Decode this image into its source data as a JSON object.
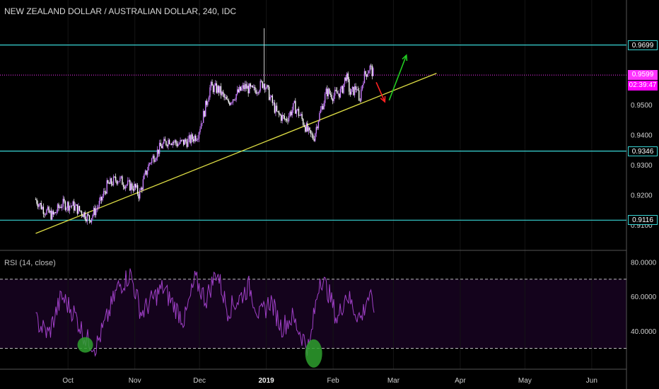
{
  "header": {
    "title": "NEW ZEALAND DOLLAR / AUSTRALIAN DOLLAR, 240, IDC"
  },
  "colors": {
    "background": "#000000",
    "candles": "#c97cff",
    "candles_down": "#ffffff",
    "support_resistance": "#39d5d5",
    "trendline": "#dddd44",
    "current_price_line": "#ff33ff",
    "rsi_line": "#a040c8",
    "rsi_bg": "#14031c",
    "arrow_down": "#ff2222",
    "arrow_up": "#22cc22",
    "marker": "#2ea02e"
  },
  "price_axis": {
    "ticks": [
      "0.9500",
      "0.9400",
      "0.9300",
      "0.9200",
      "0.9100"
    ],
    "range": [
      0.9072,
      0.979
    ]
  },
  "price_badges": [
    {
      "label": "0.9699",
      "color": "#39d5d5"
    },
    {
      "label": "0.9599",
      "color": "#ff33ff"
    },
    {
      "label": "0.9346",
      "color": "#39d5d5"
    },
    {
      "label": "0.9116",
      "color": "#39d5d5"
    }
  ],
  "countdown": "02:39:47",
  "rsi": {
    "label": "RSI (14, close)",
    "ticks": [
      "80.0000",
      "60.0000",
      "40.0000"
    ],
    "range": [
      22,
      83
    ],
    "upper_band": 70,
    "lower_band": 30
  },
  "time_axis": {
    "labels": [
      "Oct",
      "Nov",
      "Dec",
      "2019",
      "Feb",
      "Mar",
      "Apr",
      "May",
      "Jun"
    ]
  },
  "chart_data": {
    "type": "candlestick",
    "title": "NEW ZEALAND DOLLAR / AUSTRALIAN DOLLAR, 240, IDC",
    "horizontal_levels": [
      0.9699,
      0.9346,
      0.9116
    ],
    "current_price": 0.9599,
    "trendline": {
      "from": [
        "Sep-16",
        0.9072
      ],
      "to": [
        "Mar-21",
        0.9605
      ]
    },
    "price_path": [
      [
        "Sep-16",
        0.9185
      ],
      [
        "Sep-20",
        0.915
      ],
      [
        "Sep-24",
        0.913
      ],
      [
        "Sep-28",
        0.917
      ],
      [
        "Oct-03",
        0.9165
      ],
      [
        "Oct-08",
        0.914
      ],
      [
        "Oct-11",
        0.912
      ],
      [
        "Oct-16",
        0.9175
      ],
      [
        "Oct-19",
        0.923
      ],
      [
        "Oct-24",
        0.9255
      ],
      [
        "Oct-28",
        0.9235
      ],
      [
        "Nov-01",
        0.9225
      ],
      [
        "Nov-03",
        0.92
      ],
      [
        "Nov-06",
        0.927
      ],
      [
        "Nov-08",
        0.931
      ],
      [
        "Nov-13",
        0.936
      ],
      [
        "Nov-17",
        0.9385
      ],
      [
        "Nov-21",
        0.937
      ],
      [
        "Nov-26",
        0.938
      ],
      [
        "Nov-30",
        0.94
      ],
      [
        "Dec-03",
        0.947
      ],
      [
        "Dec-06",
        0.956
      ],
      [
        "Dec-10",
        0.955
      ],
      [
        "Dec-14",
        0.9505
      ],
      [
        "Dec-18",
        0.9535
      ],
      [
        "Dec-22",
        0.956
      ],
      [
        "Dec-26",
        0.9545
      ],
      [
        "Dec-31",
        0.9575
      ],
      [
        "Jan-03",
        0.952
      ],
      [
        "Jan-06",
        0.947
      ],
      [
        "Jan-10",
        0.945
      ],
      [
        "Jan-14",
        0.9495
      ],
      [
        "Jan-17",
        0.946
      ],
      [
        "Jan-21",
        0.94
      ],
      [
        "Jan-23",
        0.939
      ],
      [
        "Jan-25",
        0.945
      ],
      [
        "Jan-29",
        0.9545
      ],
      [
        "Feb-01",
        0.953
      ],
      [
        "Feb-05",
        0.9545
      ],
      [
        "Feb-07",
        0.96
      ],
      [
        "Feb-09",
        0.9535
      ],
      [
        "Feb-12",
        0.956
      ],
      [
        "Feb-13",
        0.9505
      ],
      [
        "Feb-15",
        0.959
      ],
      [
        "Feb-18",
        0.9625
      ],
      [
        "Feb-20",
        0.9599
      ]
    ],
    "spike": {
      "x": "Dec-31",
      "high": 0.9755
    },
    "annotations": [
      {
        "type": "arrow",
        "direction": "down",
        "from": [
          "Feb-21",
          0.9575
        ],
        "to": [
          "Feb-25",
          0.951
        ]
      },
      {
        "type": "arrow",
        "direction": "up",
        "from": [
          "Feb-27",
          0.9515
        ],
        "to": [
          "Mar-07",
          0.9665
        ]
      }
    ],
    "rsi_series": {
      "name": "RSI (14, close)",
      "x": [
        "Sep-16",
        "Sep-22",
        "Sep-28",
        "Oct-04",
        "Oct-09",
        "Oct-14",
        "Oct-19",
        "Oct-24",
        "Oct-30",
        "Nov-04",
        "Nov-09",
        "Nov-14",
        "Nov-19",
        "Nov-24",
        "Nov-29",
        "Dec-04",
        "Dec-09",
        "Dec-14",
        "Dec-19",
        "Dec-24",
        "Dec-29",
        "Jan-03",
        "Jan-08",
        "Jan-13",
        "Jan-18",
        "Jan-21",
        "Jan-23",
        "Jan-26",
        "Jan-30",
        "Feb-03",
        "Feb-07",
        "Feb-11",
        "Feb-14",
        "Feb-17",
        "Feb-20"
      ],
      "values": [
        46,
        38,
        60,
        50,
        36,
        31,
        47,
        65,
        73,
        50,
        58,
        65,
        55,
        46,
        70,
        58,
        75,
        52,
        58,
        66,
        48,
        58,
        42,
        48,
        36,
        30,
        48,
        72,
        62,
        46,
        62,
        52,
        47,
        60,
        55
      ]
    },
    "rsi_markers": [
      {
        "x": "Oct-09",
        "value": 32
      },
      {
        "x": "Jan-23",
        "value": 27
      }
    ],
    "rsi_bands": [
      70,
      30
    ]
  }
}
